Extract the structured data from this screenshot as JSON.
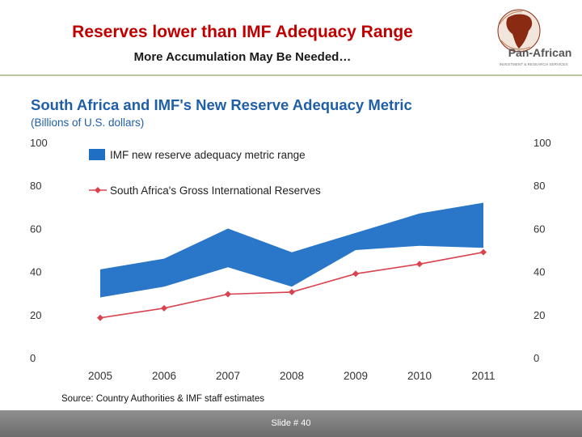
{
  "slide": {
    "title": "Reserves lower than IMF Adequacy Range",
    "subtitle": "More Accumulation May Be Needed…",
    "source": "Source: Country Authorities & IMF staff estimates",
    "slide_number": "Slide # 40"
  },
  "logo": {
    "text": "Pan-African",
    "tagline": "INVESTMENT & RESEARCH SERVICES"
  },
  "colors": {
    "title": "#c00000",
    "chart_title": "#1f5fa8",
    "band": "#1f6fc5",
    "line": "#d8434f"
  },
  "chart_data": {
    "type": "area",
    "title": "South Africa and IMF's New Reserve Adequacy Metric",
    "subtitle": "(Billions of U.S. dollars)",
    "xlabel": "",
    "ylabel": "",
    "categories": [
      "2005",
      "2006",
      "2007",
      "2008",
      "2009",
      "2010",
      "2011"
    ],
    "ylim": [
      0,
      100
    ],
    "yticks": [
      0,
      20,
      40,
      60,
      80,
      100
    ],
    "ytick_labels": [
      "0",
      "20",
      "40",
      "60",
      "80",
      "100"
    ],
    "grid": false,
    "legend_position": "top-left",
    "series": [
      {
        "name": "IMF new reserve adequacy metric range",
        "kind": "band",
        "lower": [
          28,
          33,
          42,
          33,
          50,
          52,
          51
        ],
        "upper": [
          41,
          46,
          60,
          49,
          58,
          67,
          72
        ]
      },
      {
        "name": "South Africa's Gross International Reserves",
        "kind": "line",
        "values": [
          18.5,
          23,
          29.5,
          30.5,
          39,
          43.5,
          49
        ]
      }
    ]
  }
}
